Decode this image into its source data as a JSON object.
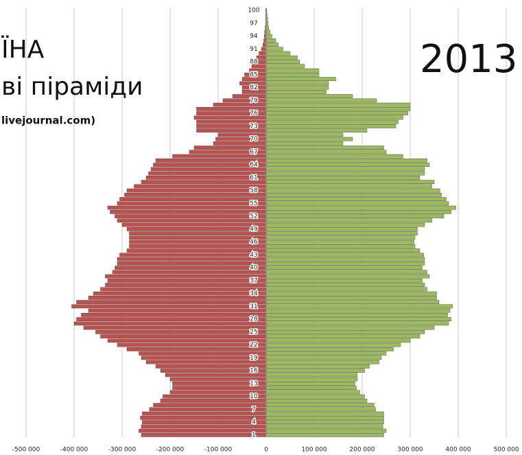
{
  "title_lines": [
    "ЇНА",
    "ві піраміди"
  ],
  "source": "livejournal.com)",
  "year": "2013",
  "chart_data": {
    "type": "pyramid",
    "categories": [
      1,
      null,
      null,
      4,
      null,
      null,
      7,
      null,
      null,
      10,
      null,
      null,
      13,
      null,
      null,
      16,
      null,
      null,
      19,
      null,
      null,
      22,
      null,
      null,
      25,
      null,
      null,
      28,
      null,
      null,
      31,
      null,
      null,
      34,
      null,
      null,
      37,
      null,
      null,
      40,
      null,
      null,
      43,
      null,
      null,
      46,
      null,
      null,
      49,
      null,
      null,
      52,
      null,
      null,
      55,
      null,
      null,
      58,
      null,
      null,
      61,
      null,
      null,
      64,
      null,
      null,
      67,
      null,
      null,
      70,
      null,
      null,
      73,
      null,
      null,
      76,
      null,
      null,
      79,
      null,
      null,
      82,
      null,
      null,
      85,
      null,
      null,
      88,
      null,
      null,
      91,
      null,
      null,
      94,
      null,
      null,
      97,
      null,
      null,
      100
    ],
    "series": [
      {
        "color": "#c0504d",
        "values": [
          -260000,
          -265000,
          -260000,
          -258000,
          -262000,
          -258000,
          -243000,
          -235000,
          -220000,
          -215000,
          -200000,
          -195000,
          -195000,
          -200000,
          -210000,
          -220000,
          -230000,
          -250000,
          -260000,
          -265000,
          -290000,
          -310000,
          -330000,
          -345000,
          -355000,
          -380000,
          -400000,
          -395000,
          -385000,
          -370000,
          -405000,
          -395000,
          -370000,
          -360000,
          -345000,
          -335000,
          -330000,
          -335000,
          -320000,
          -315000,
          -310000,
          -310000,
          -305000,
          -290000,
          -285000,
          -285000,
          -285000,
          -285000,
          -290000,
          -300000,
          -310000,
          -315000,
          -325000,
          -330000,
          -310000,
          -305000,
          -295000,
          -290000,
          -275000,
          -260000,
          -250000,
          -245000,
          -240000,
          -235000,
          -230000,
          -195000,
          -160000,
          -150000,
          -110000,
          -105000,
          -100000,
          -145000,
          -145000,
          -145000,
          -150000,
          -145000,
          -145000,
          -110000,
          -90000,
          -70000,
          -50000,
          -50000,
          -55000,
          -50000,
          -45000,
          -35000,
          -30000,
          -25000,
          -20000,
          -15000,
          -10000,
          -7000,
          -5000,
          -4000,
          -3000,
          -2000,
          -1000,
          -1000,
          -1000,
          -1000
        ]
      },
      {
        "color": "#9bbb59",
        "values": [
          245000,
          250000,
          243000,
          245000,
          245000,
          245000,
          228000,
          225000,
          210000,
          205000,
          195000,
          188000,
          185000,
          190000,
          190000,
          205000,
          215000,
          235000,
          240000,
          250000,
          265000,
          280000,
          300000,
          320000,
          330000,
          350000,
          380000,
          385000,
          378000,
          383000,
          388000,
          360000,
          355000,
          355000,
          335000,
          330000,
          325000,
          340000,
          335000,
          325000,
          330000,
          330000,
          328000,
          320000,
          310000,
          308000,
          310000,
          315000,
          315000,
          330000,
          345000,
          370000,
          385000,
          395000,
          380000,
          375000,
          365000,
          362000,
          345000,
          350000,
          320000,
          330000,
          330000,
          340000,
          335000,
          285000,
          250000,
          245000,
          160000,
          180000,
          160000,
          210000,
          270000,
          275000,
          285000,
          295000,
          300000,
          300000,
          230000,
          180000,
          125000,
          130000,
          130000,
          145000,
          110000,
          110000,
          80000,
          70000,
          65000,
          50000,
          35000,
          25000,
          20000,
          12000,
          8000,
          5000,
          4000,
          3000,
          2000,
          1000
        ]
      }
    ],
    "xlim": [
      -500000,
      500000
    ],
    "xticks": [
      {
        "value": -500000,
        "label": "-500 000"
      },
      {
        "value": -400000,
        "label": "-400 000"
      },
      {
        "value": -300000,
        "label": "-300 000"
      },
      {
        "value": -200000,
        "label": "-200 000"
      },
      {
        "value": -100000,
        "label": "-100 000"
      },
      0,
      {
        "value": 100000,
        "label": "100 000"
      },
      {
        "value": 200000,
        "label": "200 000"
      },
      {
        "value": 300000,
        "label": "300 000"
      },
      {
        "value": 400000,
        "label": "400 000"
      },
      {
        "value": 500000,
        "label": "500 000"
      }
    ],
    "grid": true
  }
}
